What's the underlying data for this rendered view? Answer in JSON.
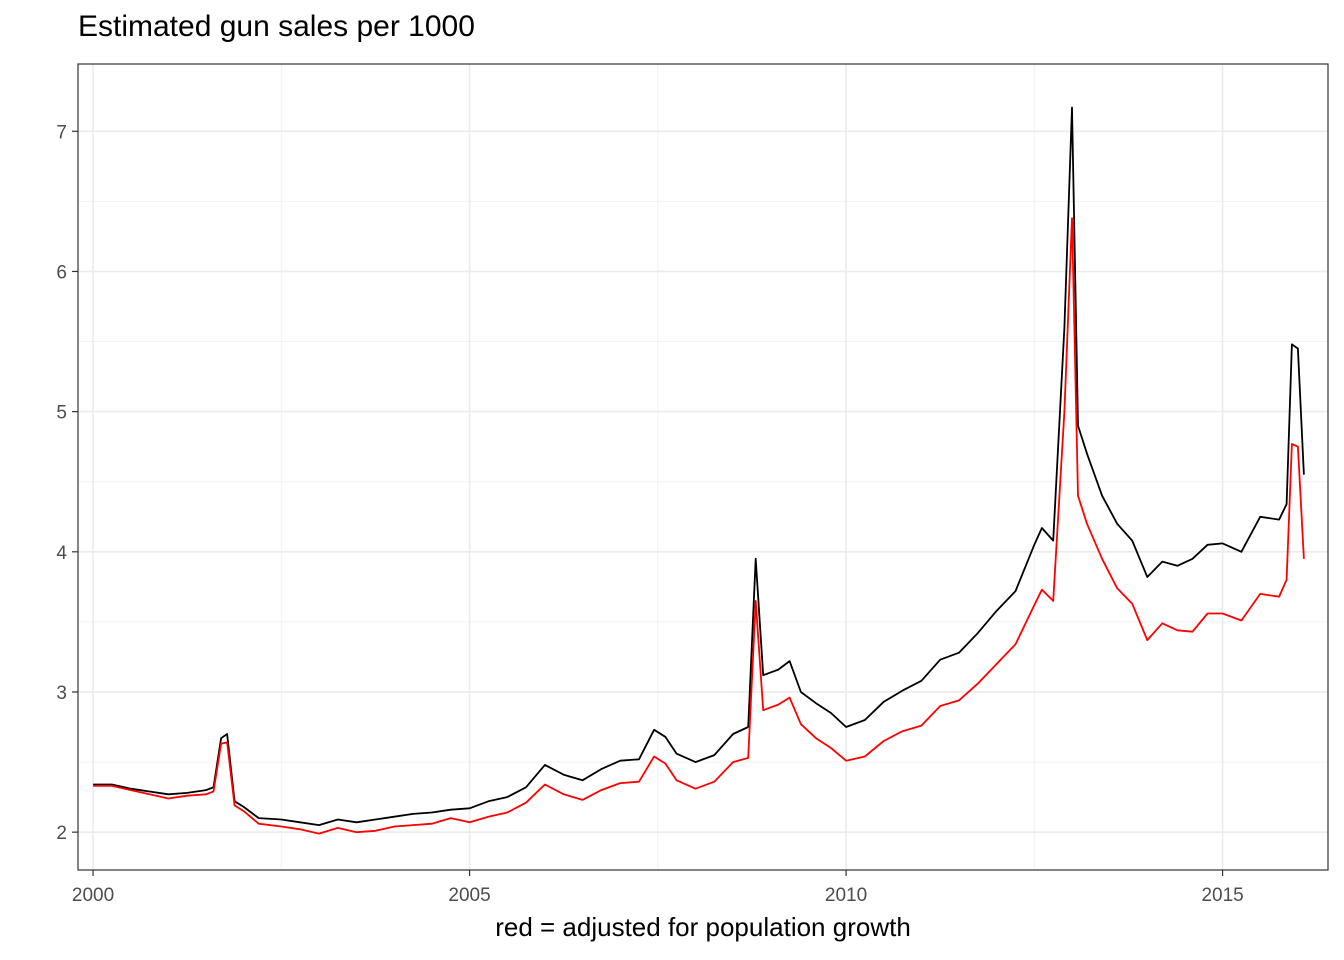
{
  "chart_data": {
    "type": "line",
    "title": "Estimated gun sales per 1000",
    "xlabel": "red = adjusted for population growth",
    "ylabel": "",
    "xlim": [
      1999.8,
      2016.4
    ],
    "ylim": [
      1.73,
      7.48
    ],
    "x_ticks": [
      2000,
      2005,
      2010,
      2015
    ],
    "x_tick_labels": [
      "2000",
      "2005",
      "2010",
      "2015"
    ],
    "y_ticks": [
      2,
      3,
      4,
      5,
      6,
      7
    ],
    "y_tick_labels": [
      "2",
      "3",
      "4",
      "5",
      "6",
      "7"
    ],
    "grid": true,
    "legend": "none",
    "series": [
      {
        "color": "#000000",
        "points": [
          [
            2000.0,
            2.34
          ],
          [
            2000.25,
            2.34
          ],
          [
            2000.5,
            2.31
          ],
          [
            2000.75,
            2.29
          ],
          [
            2001.0,
            2.27
          ],
          [
            2001.25,
            2.28
          ],
          [
            2001.5,
            2.3
          ],
          [
            2001.6,
            2.32
          ],
          [
            2001.7,
            2.67
          ],
          [
            2001.78,
            2.7
          ],
          [
            2001.88,
            2.22
          ],
          [
            2002.0,
            2.18
          ],
          [
            2002.2,
            2.1
          ],
          [
            2002.5,
            2.09
          ],
          [
            2002.75,
            2.07
          ],
          [
            2003.0,
            2.05
          ],
          [
            2003.25,
            2.09
          ],
          [
            2003.5,
            2.07
          ],
          [
            2003.75,
            2.09
          ],
          [
            2004.0,
            2.11
          ],
          [
            2004.25,
            2.13
          ],
          [
            2004.5,
            2.14
          ],
          [
            2004.75,
            2.16
          ],
          [
            2005.0,
            2.17
          ],
          [
            2005.25,
            2.22
          ],
          [
            2005.5,
            2.25
          ],
          [
            2005.75,
            2.32
          ],
          [
            2006.0,
            2.48
          ],
          [
            2006.25,
            2.41
          ],
          [
            2006.5,
            2.37
          ],
          [
            2006.75,
            2.45
          ],
          [
            2007.0,
            2.51
          ],
          [
            2007.25,
            2.52
          ],
          [
            2007.45,
            2.73
          ],
          [
            2007.6,
            2.68
          ],
          [
            2007.75,
            2.56
          ],
          [
            2008.0,
            2.5
          ],
          [
            2008.25,
            2.55
          ],
          [
            2008.5,
            2.7
          ],
          [
            2008.7,
            2.75
          ],
          [
            2008.8,
            3.95
          ],
          [
            2008.9,
            3.12
          ],
          [
            2009.1,
            3.16
          ],
          [
            2009.25,
            3.22
          ],
          [
            2009.4,
            3.0
          ],
          [
            2009.6,
            2.92
          ],
          [
            2009.8,
            2.85
          ],
          [
            2010.0,
            2.75
          ],
          [
            2010.25,
            2.8
          ],
          [
            2010.5,
            2.93
          ],
          [
            2010.75,
            3.01
          ],
          [
            2011.0,
            3.08
          ],
          [
            2011.25,
            3.23
          ],
          [
            2011.5,
            3.28
          ],
          [
            2011.75,
            3.42
          ],
          [
            2012.0,
            3.58
          ],
          [
            2012.25,
            3.72
          ],
          [
            2012.5,
            4.05
          ],
          [
            2012.6,
            4.17
          ],
          [
            2012.75,
            4.08
          ],
          [
            2012.9,
            5.6
          ],
          [
            2013.0,
            7.17
          ],
          [
            2013.08,
            4.9
          ],
          [
            2013.2,
            4.7
          ],
          [
            2013.4,
            4.4
          ],
          [
            2013.6,
            4.2
          ],
          [
            2013.8,
            4.08
          ],
          [
            2014.0,
            3.82
          ],
          [
            2014.2,
            3.93
          ],
          [
            2014.4,
            3.9
          ],
          [
            2014.6,
            3.95
          ],
          [
            2014.8,
            4.05
          ],
          [
            2015.0,
            4.06
          ],
          [
            2015.25,
            4.0
          ],
          [
            2015.5,
            4.25
          ],
          [
            2015.75,
            4.23
          ],
          [
            2015.85,
            4.34
          ],
          [
            2015.92,
            5.48
          ],
          [
            2016.0,
            5.45
          ],
          [
            2016.08,
            4.55
          ]
        ]
      },
      {
        "color": "#ff0000",
        "points": [
          [
            2000.0,
            2.33
          ],
          [
            2000.25,
            2.33
          ],
          [
            2000.5,
            2.3
          ],
          [
            2000.75,
            2.27
          ],
          [
            2001.0,
            2.24
          ],
          [
            2001.25,
            2.26
          ],
          [
            2001.5,
            2.27
          ],
          [
            2001.6,
            2.29
          ],
          [
            2001.7,
            2.63
          ],
          [
            2001.78,
            2.64
          ],
          [
            2001.88,
            2.19
          ],
          [
            2002.0,
            2.15
          ],
          [
            2002.2,
            2.06
          ],
          [
            2002.5,
            2.04
          ],
          [
            2002.75,
            2.02
          ],
          [
            2003.0,
            1.99
          ],
          [
            2003.25,
            2.03
          ],
          [
            2003.5,
            2.0
          ],
          [
            2003.75,
            2.01
          ],
          [
            2004.0,
            2.04
          ],
          [
            2004.25,
            2.05
          ],
          [
            2004.5,
            2.06
          ],
          [
            2004.75,
            2.1
          ],
          [
            2005.0,
            2.07
          ],
          [
            2005.25,
            2.11
          ],
          [
            2005.5,
            2.14
          ],
          [
            2005.75,
            2.21
          ],
          [
            2006.0,
            2.34
          ],
          [
            2006.25,
            2.27
          ],
          [
            2006.5,
            2.23
          ],
          [
            2006.75,
            2.3
          ],
          [
            2007.0,
            2.35
          ],
          [
            2007.25,
            2.36
          ],
          [
            2007.45,
            2.54
          ],
          [
            2007.6,
            2.49
          ],
          [
            2007.75,
            2.37
          ],
          [
            2008.0,
            2.31
          ],
          [
            2008.25,
            2.36
          ],
          [
            2008.5,
            2.5
          ],
          [
            2008.7,
            2.53
          ],
          [
            2008.8,
            3.65
          ],
          [
            2008.9,
            2.87
          ],
          [
            2009.1,
            2.91
          ],
          [
            2009.25,
            2.96
          ],
          [
            2009.4,
            2.77
          ],
          [
            2009.6,
            2.67
          ],
          [
            2009.8,
            2.6
          ],
          [
            2010.0,
            2.51
          ],
          [
            2010.25,
            2.54
          ],
          [
            2010.5,
            2.65
          ],
          [
            2010.75,
            2.72
          ],
          [
            2011.0,
            2.76
          ],
          [
            2011.25,
            2.9
          ],
          [
            2011.5,
            2.94
          ],
          [
            2011.75,
            3.06
          ],
          [
            2012.0,
            3.2
          ],
          [
            2012.25,
            3.34
          ],
          [
            2012.5,
            3.62
          ],
          [
            2012.6,
            3.73
          ],
          [
            2012.75,
            3.65
          ],
          [
            2012.9,
            5.0
          ],
          [
            2013.0,
            6.38
          ],
          [
            2013.08,
            4.4
          ],
          [
            2013.2,
            4.2
          ],
          [
            2013.4,
            3.95
          ],
          [
            2013.6,
            3.74
          ],
          [
            2013.8,
            3.63
          ],
          [
            2014.0,
            3.37
          ],
          [
            2014.2,
            3.49
          ],
          [
            2014.4,
            3.44
          ],
          [
            2014.6,
            3.43
          ],
          [
            2014.8,
            3.56
          ],
          [
            2015.0,
            3.56
          ],
          [
            2015.25,
            3.51
          ],
          [
            2015.5,
            3.7
          ],
          [
            2015.75,
            3.68
          ],
          [
            2015.85,
            3.8
          ],
          [
            2015.92,
            4.77
          ],
          [
            2016.0,
            4.75
          ],
          [
            2016.08,
            3.95
          ]
        ]
      }
    ]
  }
}
